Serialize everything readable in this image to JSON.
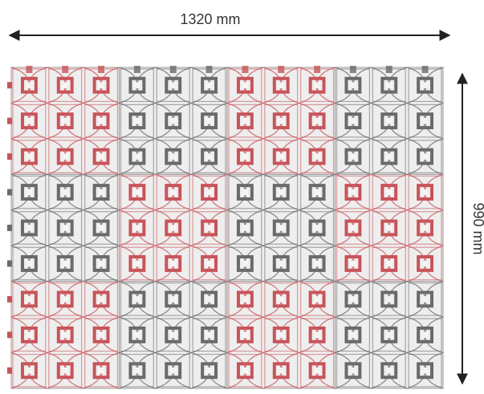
{
  "dimensions": {
    "width_label": "1320 mm",
    "height_label": "990 mm"
  },
  "grid": {
    "tile_columns": 4,
    "tile_rows": 3,
    "cells_per_tile_side": 3,
    "tile_colors": [
      [
        "red",
        "grey",
        "red",
        "grey"
      ],
      [
        "grey",
        "red",
        "grey",
        "red"
      ],
      [
        "red",
        "grey",
        "red",
        "grey"
      ]
    ]
  },
  "colors": {
    "red": "#c8545a",
    "grey": "#6a6a6a",
    "tile_face": "#e6e6e6",
    "arrow": "#222222"
  }
}
